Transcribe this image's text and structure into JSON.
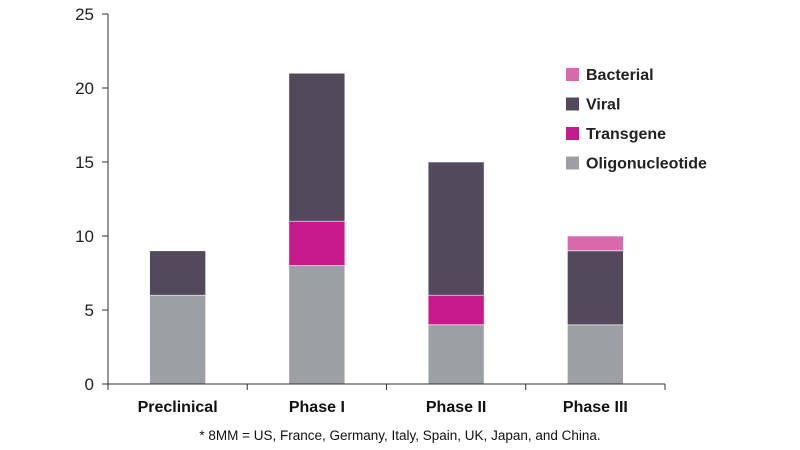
{
  "chart_data": {
    "type": "bar",
    "stacked": true,
    "categories": [
      "Preclinical",
      "Phase I",
      "Phase II",
      "Phase III"
    ],
    "series": [
      {
        "name": "Oligonucleotide",
        "color": "#9ca0a5",
        "values": [
          6,
          8,
          4,
          4
        ]
      },
      {
        "name": "Transgene",
        "color": "#c8198a",
        "values": [
          0,
          3,
          2,
          0
        ]
      },
      {
        "name": "Viral",
        "color": "#524a5c",
        "values": [
          3,
          10,
          9,
          5
        ]
      },
      {
        "name": "Bacterial",
        "color": "#d86aac",
        "values": [
          0,
          0,
          0,
          1
        ]
      }
    ],
    "legend_order": [
      "Bacterial",
      "Viral",
      "Transgene",
      "Oligonucleotide"
    ],
    "ylim": [
      0,
      25
    ],
    "yticks": [
      0,
      5,
      10,
      15,
      20,
      25
    ],
    "grid": false,
    "legend_position": "top-right"
  },
  "footnote": "* 8MM = US, France, Germany, Italy, Spain, UK, Japan, and China."
}
